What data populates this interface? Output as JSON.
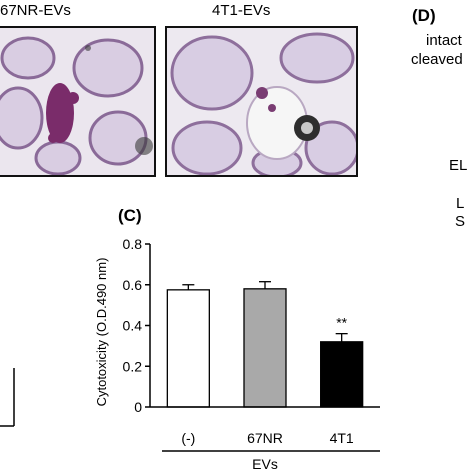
{
  "images": {
    "left": {
      "title": "67NR-EVs"
    },
    "right": {
      "title": "4T1-EVs"
    }
  },
  "panel_c": {
    "letter": "(C)"
  },
  "panel_d": {
    "letter": "(D)",
    "labels": [
      "intact",
      "cleaved",
      "EL",
      "L",
      "S"
    ]
  },
  "chart_data": {
    "type": "bar",
    "categories": [
      "(-)",
      "67NR",
      "4T1"
    ],
    "values": [
      0.575,
      0.58,
      0.32
    ],
    "errors": [
      0.025,
      0.035,
      0.04
    ],
    "bar_colors": [
      "#ffffff",
      "#a9a9a9",
      "#000000"
    ],
    "significance": [
      "",
      "",
      "**"
    ],
    "ylabel": "Cytotoxicity (O.D.490 nm)",
    "xlabel": "EVs",
    "ylim": [
      0,
      0.8
    ],
    "yticks": [
      "0",
      "0.2",
      "0.4",
      "0.6",
      "0.8"
    ]
  }
}
